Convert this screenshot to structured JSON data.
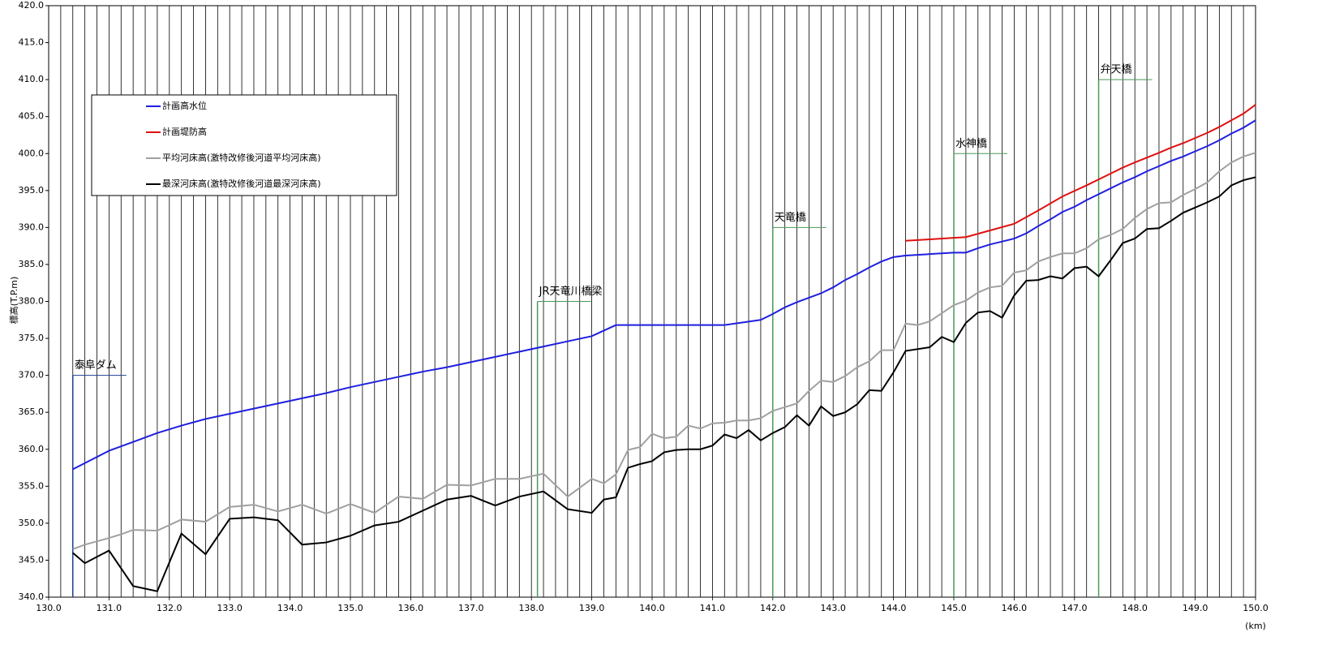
{
  "chart_data": {
    "type": "line",
    "ylabel": "標高(T.P.m)",
    "xlabel": "(km)",
    "xlim": [
      130,
      150
    ],
    "ylim": [
      340,
      420
    ],
    "xticks": [
      {
        "value": 130,
        "label": "130.0"
      },
      {
        "value": 131,
        "label": "131.0"
      },
      {
        "value": 132,
        "label": "132.0"
      },
      {
        "value": 133,
        "label": "133.0"
      },
      {
        "value": 134,
        "label": "134.0"
      },
      {
        "value": 135,
        "label": "135.0"
      },
      {
        "value": 136,
        "label": "136.0"
      },
      {
        "value": 137,
        "label": "137.0"
      },
      {
        "value": 138,
        "label": "138.0"
      },
      {
        "value": 139,
        "label": "139.0"
      },
      {
        "value": 140,
        "label": "140.0"
      },
      {
        "value": 141,
        "label": "141.0"
      },
      {
        "value": 142,
        "label": "142.0"
      },
      {
        "value": 143,
        "label": "143.0"
      },
      {
        "value": 144,
        "label": "144.0"
      },
      {
        "value": 145,
        "label": "145.0"
      },
      {
        "value": 146,
        "label": "146.0"
      },
      {
        "value": 147,
        "label": "147.0"
      },
      {
        "value": 148,
        "label": "148.0"
      },
      {
        "value": 149,
        "label": "149.0"
      },
      {
        "value": 150,
        "label": "150.0"
      }
    ],
    "x_minor_grid": [
      130.2,
      130.4,
      130.6,
      130.8,
      131.2,
      131.4,
      131.6,
      131.8,
      132.2,
      132.4,
      132.6,
      132.8,
      133.2,
      133.4,
      133.6,
      133.8,
      134.2,
      134.4,
      134.6,
      134.8,
      135.2,
      135.4,
      135.6,
      135.8,
      136.2,
      136.4,
      136.6,
      136.8,
      137.2,
      137.4,
      137.6,
      137.8,
      138.2,
      138.4,
      138.6,
      138.8,
      139.2,
      139.4,
      139.6,
      139.8,
      140.2,
      140.4,
      140.6,
      140.8,
      141.2,
      141.4,
      141.6,
      141.8,
      142.2,
      142.4,
      142.6,
      142.8,
      143.2,
      143.4,
      143.6,
      143.8,
      144.2,
      144.4,
      144.6,
      144.8,
      145.2,
      145.4,
      145.6,
      145.8,
      146.2,
      146.4,
      146.6,
      146.8,
      147.2,
      147.4,
      147.6,
      147.8,
      148.2,
      148.4,
      148.6,
      148.8,
      149.2,
      149.4,
      149.6,
      149.8
    ],
    "yticks": [
      {
        "value": 340,
        "label": "340.0"
      },
      {
        "value": 345,
        "label": "345.0"
      },
      {
        "value": 350,
        "label": "350.0"
      },
      {
        "value": 355,
        "label": "355.0"
      },
      {
        "value": 360,
        "label": "360.0"
      },
      {
        "value": 365,
        "label": "365.0"
      },
      {
        "value": 370,
        "label": "370.0"
      },
      {
        "value": 375,
        "label": "375.0"
      },
      {
        "value": 380,
        "label": "380.0"
      },
      {
        "value": 385,
        "label": "385.0"
      },
      {
        "value": 390,
        "label": "390.0"
      },
      {
        "value": 395,
        "label": "395.0"
      },
      {
        "value": 400,
        "label": "400.0"
      },
      {
        "value": 405,
        "label": "405.0"
      },
      {
        "value": 410,
        "label": "410.0"
      },
      {
        "value": 415,
        "label": "415.0"
      },
      {
        "value": 420,
        "label": "420.0"
      }
    ],
    "series": [
      {
        "name": "計画高水位",
        "color": "#1f1fe0",
        "x": [
          130.4,
          131.0,
          131.4,
          131.8,
          132.2,
          132.6,
          133.0,
          133.4,
          133.8,
          134.2,
          134.6,
          135.0,
          135.4,
          135.8,
          136.2,
          136.6,
          137.0,
          137.4,
          137.8,
          138.2,
          138.6,
          139.0,
          139.4,
          140.0,
          141.2,
          141.8,
          142.0,
          142.2,
          142.4,
          142.6,
          142.8,
          143.0,
          143.2,
          143.4,
          143.6,
          143.8,
          144.0,
          144.2,
          144.6,
          145.0,
          145.2,
          145.4,
          145.6,
          145.8,
          146.0,
          146.2,
          146.4,
          146.6,
          146.8,
          147.0,
          147.2,
          147.4,
          147.6,
          147.8,
          148.0,
          148.2,
          148.4,
          148.6,
          148.8,
          149.0,
          149.2,
          149.4,
          149.6,
          149.8,
          150.0
        ],
        "values": [
          357.3,
          359.8,
          361,
          362.2,
          363.2,
          364.1,
          364.8,
          365.5,
          366.2,
          366.9,
          367.6,
          368.4,
          369.1,
          369.8,
          370.5,
          371.1,
          371.8,
          372.5,
          373.2,
          373.9,
          374.6,
          375.3,
          376.8,
          376.8,
          376.8,
          377.5,
          378.3,
          379.2,
          379.9,
          380.5,
          381.1,
          381.9,
          382.9,
          383.7,
          384.6,
          385.4,
          386.0,
          386.2,
          386.4,
          386.6,
          386.6,
          387.2,
          387.7,
          388.1,
          388.5,
          389.2,
          390.2,
          391.1,
          392.1,
          392.8,
          393.7,
          394.5,
          395.3,
          396.1,
          396.8,
          397.6,
          398.3,
          399.0,
          399.6,
          400.3,
          401.0,
          401.8,
          402.7,
          403.5,
          404.5
        ]
      },
      {
        "name": "計画堤防高",
        "color": "#e01010",
        "x": [
          144.2,
          144.6,
          145.0,
          145.2,
          145.6,
          146.0,
          146.4,
          146.8,
          147.2,
          147.6,
          147.8,
          148.0,
          148.4,
          148.6,
          148.8,
          149.0,
          149.2,
          149.4,
          149.6,
          149.8,
          150.0
        ],
        "values": [
          388.2,
          388.4,
          388.6,
          388.7,
          389.6,
          390.5,
          392.3,
          394.2,
          395.7,
          397.3,
          398.1,
          398.8,
          400.1,
          400.8,
          401.4,
          402.1,
          402.8,
          403.6,
          404.5,
          405.4,
          406.6
        ]
      },
      {
        "name": "平均河床高(激特改修後河道平均河床高)",
        "color": "#a0a0a0",
        "x": [
          130.4,
          130.6,
          131.0,
          131.2,
          131.4,
          131.8,
          132.2,
          132.6,
          133.0,
          133.4,
          133.8,
          134.2,
          134.6,
          135.0,
          135.4,
          135.8,
          136.2,
          136.6,
          137.0,
          137.4,
          137.8,
          138.2,
          138.6,
          139.0,
          139.2,
          139.4,
          139.6,
          139.8,
          140.0,
          140.2,
          140.4,
          140.6,
          140.8,
          141.0,
          141.2,
          141.4,
          141.6,
          141.8,
          142.0,
          142.2,
          142.4,
          142.6,
          142.8,
          143.0,
          143.2,
          143.4,
          143.6,
          143.8,
          144.0,
          144.2,
          144.4,
          144.6,
          144.8,
          145.0,
          145.2,
          145.4,
          145.6,
          145.8,
          146.0,
          146.2,
          146.4,
          146.6,
          146.8,
          147.0,
          147.2,
          147.4,
          147.6,
          147.8,
          148.0,
          148.2,
          148.4,
          148.6,
          148.8,
          149.0,
          149.2,
          149.4,
          149.6,
          149.8,
          150.0
        ],
        "values": [
          346.5,
          347.1,
          348,
          348.5,
          349.1,
          349.0,
          350.5,
          350.2,
          352.2,
          352.5,
          351.6,
          352.5,
          351.3,
          352.6,
          351.4,
          353.6,
          353.3,
          355.2,
          355.1,
          356.0,
          356.0,
          356.7,
          353.6,
          356.0,
          355.4,
          356.6,
          359.9,
          360.3,
          362.1,
          361.5,
          361.7,
          363.2,
          362.8,
          363.5,
          363.6,
          363.9,
          363.9,
          364.2,
          365.2,
          365.7,
          366.2,
          367.9,
          369.3,
          369.1,
          369.9,
          371.1,
          371.9,
          373.4,
          373.4,
          377.0,
          376.8,
          377.3,
          378.4,
          379.5,
          380.1,
          381.2,
          381.9,
          382.1,
          383.9,
          384.2,
          385.4,
          386.0,
          386.5,
          386.5,
          387.2,
          388.4,
          389.0,
          389.8,
          391.3,
          392.5,
          393.3,
          393.4,
          394.4,
          395.2,
          396.1,
          397.6,
          398.8,
          399.6,
          400.1
        ]
      },
      {
        "name": "最深河床高(激特改修後河道最深河床高)",
        "color": "#000000",
        "x": [
          130.4,
          130.6,
          131.0,
          131.4,
          131.8,
          132.2,
          132.6,
          133.0,
          133.4,
          133.8,
          134.2,
          134.6,
          135.0,
          135.4,
          135.8,
          136.2,
          136.6,
          137.0,
          137.4,
          137.8,
          138.2,
          138.6,
          139.0,
          139.2,
          139.4,
          139.6,
          139.8,
          140.0,
          140.2,
          140.4,
          140.6,
          140.8,
          141.0,
          141.2,
          141.4,
          141.6,
          141.8,
          142.0,
          142.2,
          142.4,
          142.6,
          142.8,
          143.0,
          143.2,
          143.4,
          143.6,
          143.8,
          144.0,
          144.2,
          144.6,
          144.8,
          145.0,
          145.2,
          145.4,
          145.6,
          145.8,
          146.0,
          146.2,
          146.4,
          146.6,
          146.8,
          147.0,
          147.2,
          147.4,
          147.6,
          147.8,
          148.0,
          148.2,
          148.4,
          148.6,
          148.8,
          149.0,
          149.2,
          149.4,
          149.6,
          149.8,
          150.0
        ],
        "values": [
          346.0,
          344.6,
          346.3,
          341.5,
          340.8,
          348.6,
          345.8,
          350.6,
          350.8,
          350.4,
          347.1,
          347.4,
          348.3,
          349.7,
          350.2,
          351.7,
          353.2,
          353.7,
          352.4,
          353.6,
          354.3,
          351.9,
          351.4,
          353.2,
          353.5,
          357.5,
          358.0,
          358.4,
          359.6,
          359.9,
          360.0,
          360.0,
          360.5,
          362.0,
          361.5,
          362.6,
          361.2,
          362.2,
          363.0,
          364.6,
          363.2,
          365.8,
          364.5,
          365.0,
          366.1,
          368.0,
          367.9,
          370.4,
          373.3,
          373.8,
          375.2,
          374.5,
          377.1,
          378.5,
          378.7,
          377.8,
          380.8,
          382.8,
          382.9,
          383.4,
          383.1,
          384.5,
          384.7,
          383.4,
          385.6,
          387.9,
          388.5,
          389.8,
          389.9,
          390.9,
          392.0,
          392.7,
          393.4,
          394.2,
          395.7,
          396.4,
          396.8
        ]
      }
    ],
    "annotations": [
      {
        "text": "泰阜ダム",
        "x": 130.4,
        "y": 370,
        "color": "#1f3f8f"
      },
      {
        "text": "JR天竜川橋梁",
        "x": 138.1,
        "y": 380,
        "color": "#4a9a5a"
      },
      {
        "text": "天竜橋",
        "x": 142.0,
        "y": 390,
        "color": "#4a9a5a"
      },
      {
        "text": "水神橋",
        "x": 145.0,
        "y": 400,
        "color": "#4a9a5a"
      },
      {
        "text": "弁天橋",
        "x": 147.4,
        "y": 410,
        "color": "#4a9a5a"
      }
    ]
  }
}
